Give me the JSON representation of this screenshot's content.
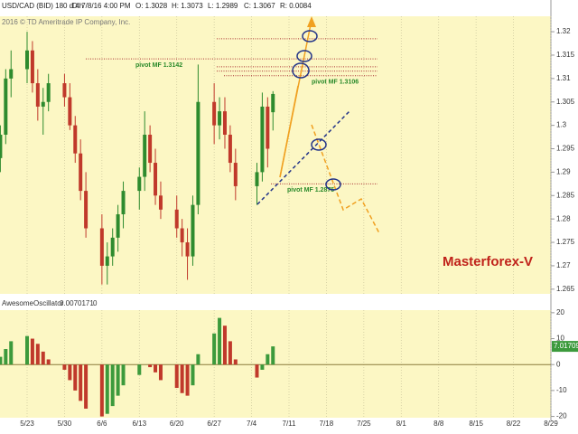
{
  "header": {
    "symbol": "USD/CAD (BID) 180 d 4h",
    "date": "D: 7/8/16 4:00 PM",
    "open": "O: 1.3028",
    "high": "H: 1.3073",
    "low": "L: 1.2989",
    "close": "C: 1.3067",
    "range": "R: 0.0084",
    "copyright": "2016 © TD Ameritrade IP Company, Inc.",
    "watermark": "Masterforex-V"
  },
  "chart_data": [
    {
      "type": "candlestick",
      "up_color": "#2e8b2e",
      "down_color": "#c0392b",
      "x": [
        "5/18",
        "5/19",
        "5/20",
        "5/23",
        "5/24",
        "5/25",
        "5/26",
        "5/27",
        "5/30",
        "5/31",
        "6/1",
        "6/2",
        "6/3",
        "6/6",
        "6/7",
        "6/8",
        "6/9",
        "6/10",
        "6/13",
        "6/14",
        "6/15",
        "6/16",
        "6/17",
        "6/20",
        "6/21",
        "6/22",
        "6/23",
        "6/24",
        "6/27",
        "6/28",
        "6/29",
        "6/30",
        "7/1",
        "7/5",
        "7/6",
        "7/7",
        "7/8"
      ],
      "open": [
        1.293,
        1.298,
        1.31,
        1.312,
        1.316,
        1.309,
        1.304,
        1.305,
        1.309,
        1.306,
        1.3,
        1.294,
        1.286,
        1.278,
        1.27,
        1.272,
        1.276,
        1.281,
        1.286,
        1.289,
        1.298,
        1.292,
        1.285,
        1.282,
        1.278,
        1.275,
        1.272,
        1.283,
        1.305,
        1.3,
        1.303,
        1.298,
        1.292,
        1.287,
        1.29,
        1.304,
        1.3028
      ],
      "high": [
        1.3,
        1.312,
        1.316,
        1.32,
        1.318,
        1.312,
        1.308,
        1.311,
        1.311,
        1.309,
        1.302,
        1.297,
        1.29,
        1.281,
        1.275,
        1.278,
        1.283,
        1.288,
        1.291,
        1.303,
        1.3,
        1.295,
        1.288,
        1.285,
        1.28,
        1.278,
        1.285,
        1.313,
        1.309,
        1.306,
        1.306,
        1.3,
        1.295,
        1.292,
        1.307,
        1.306,
        1.3073
      ],
      "low": [
        1.29,
        1.296,
        1.306,
        1.309,
        1.307,
        1.301,
        1.298,
        1.303,
        1.304,
        1.299,
        1.292,
        1.284,
        1.276,
        1.266,
        1.266,
        1.27,
        1.273,
        1.278,
        1.282,
        1.286,
        1.29,
        1.283,
        1.28,
        1.276,
        1.272,
        1.267,
        1.27,
        1.281,
        1.296,
        1.297,
        1.295,
        1.29,
        1.284,
        1.283,
        1.288,
        1.291,
        1.2989
      ],
      "close": [
        1.298,
        1.31,
        1.312,
        1.316,
        1.309,
        1.304,
        1.305,
        1.309,
        1.306,
        1.3,
        1.294,
        1.286,
        1.278,
        1.27,
        1.272,
        1.276,
        1.281,
        1.286,
        1.289,
        1.298,
        1.292,
        1.285,
        1.282,
        1.278,
        1.275,
        1.272,
        1.283,
        1.305,
        1.3,
        1.303,
        1.298,
        1.292,
        1.287,
        1.29,
        1.304,
        1.295,
        1.3067
      ],
      "ylim": [
        1.264,
        1.3233
      ],
      "yticks": [
        1.265,
        1.27,
        1.275,
        1.28,
        1.285,
        1.29,
        1.295,
        1.3,
        1.305,
        1.31,
        1.315,
        1.32
      ],
      "xticks": [
        "5/23",
        "5/30",
        "6/6",
        "6/13",
        "6/20",
        "6/27",
        "7/4",
        "7/11",
        "7/18",
        "7/25",
        "8/1",
        "8/8",
        "8/15",
        "8/22",
        "8/29"
      ],
      "levels": [
        {
          "value": 1.3142,
          "label": "pivot MF 1.3142"
        },
        {
          "value": 1.3106,
          "label": "pivot MF 1.3106"
        },
        {
          "value": 1.2875,
          "label": "pivot MF 1.2875"
        }
      ],
      "lines": [
        1.3185,
        1.3125,
        1.3116
      ]
    },
    {
      "type": "oscillator",
      "name": "AwesomeOscillator",
      "reading": "0.0070171",
      "reading2": "0",
      "up_color": "#3c9a3c",
      "down_color": "#c0392b",
      "values": [
        3,
        6,
        9,
        11,
        10,
        8,
        5,
        2,
        -2,
        -6,
        -10,
        -14,
        -17,
        -20,
        -19,
        -16,
        -12,
        -8,
        -4,
        0,
        -1,
        -3,
        -6,
        -9,
        -11,
        -12,
        -8,
        4,
        12,
        18,
        15,
        9,
        2,
        -5,
        -2,
        4,
        7.01709
      ],
      "ylim": [
        -20.5,
        21
      ],
      "yticks": [
        -20,
        -10,
        0,
        10,
        20
      ]
    }
  ]
}
